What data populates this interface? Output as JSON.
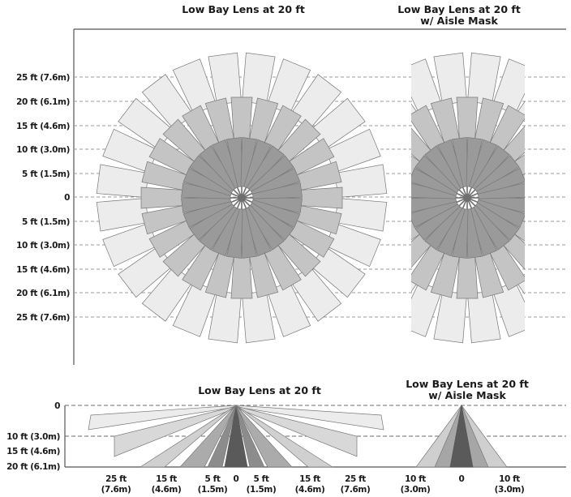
{
  "top": {
    "title_left": "Low Bay Lens at 20 ft",
    "title_right_line1": "Low Bay Lens at 20 ft",
    "title_right_line2": "w/ Aisle Mask",
    "y_labels": [
      "25 ft (7.6m)",
      "20 ft (6.1m)",
      "15 ft (4.6m)",
      "10 ft (3.0m)",
      "5 ft (1.5m)",
      "0",
      "5 ft (1.5m)",
      "10 ft (3.0m)",
      "15 ft (4.6m)",
      "20 ft (6.1m)",
      "25 ft (7.6m)"
    ]
  },
  "bottom": {
    "title_left": "Low Bay Lens at 20 ft",
    "title_right_line1": "Low Bay Lens at 20 ft",
    "title_right_line2": "w/ Aisle Mask",
    "y_labels": [
      "0",
      "10 ft (3.0m)",
      "15 ft (4.6m)",
      "20 ft (6.1m)"
    ],
    "x_labels_left": [
      {
        "ft": "25 ft",
        "m": "(7.6m)"
      },
      {
        "ft": "15 ft",
        "m": "(4.6m)"
      },
      {
        "ft": "5 ft",
        "m": "(1.5m)"
      },
      {
        "ft": "0",
        "m": ""
      },
      {
        "ft": "5 ft",
        "m": "(1.5m)"
      },
      {
        "ft": "15 ft",
        "m": "(4.6m)"
      },
      {
        "ft": "25 ft",
        "m": "(7.6m)"
      }
    ],
    "x_labels_right": [
      {
        "ft": "10 ft",
        "m": "(3.0m)"
      },
      {
        "ft": "0",
        "m": ""
      },
      {
        "ft": "10 ft",
        "m": "(3.0m)"
      }
    ]
  },
  "colors": {
    "zone_far": "#ececec",
    "zone_mid": "#c4c4c4",
    "zone_near": "#9a9a9a",
    "zone_center": "#6e6e6e",
    "zone_stroke": "#777777"
  }
}
